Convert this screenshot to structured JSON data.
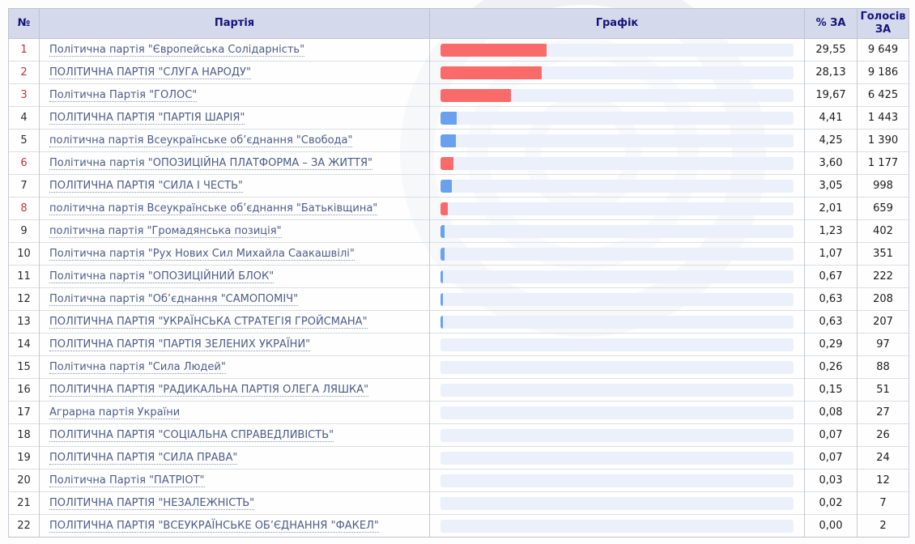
{
  "table": {
    "columns": {
      "num": "№",
      "party": "Партія",
      "chart": "Графік",
      "pct": "% ЗА",
      "votes": "Голосів ЗА"
    },
    "rows": [
      {
        "num": "1",
        "party": "Політична партія \"Європейська Солідарність\"",
        "pct": "29,55",
        "pct_value": 29.55,
        "votes": "9 649",
        "highlight": true
      },
      {
        "num": "2",
        "party": "ПОЛІТИЧНА ПАРТІЯ \"СЛУГА НАРОДУ\"",
        "pct": "28,13",
        "pct_value": 28.13,
        "votes": "9 186",
        "highlight": true
      },
      {
        "num": "3",
        "party": "Політична Партія \"ГОЛОС\"",
        "pct": "19,67",
        "pct_value": 19.67,
        "votes": "6 425",
        "highlight": true
      },
      {
        "num": "4",
        "party": "ПОЛІТИЧНА ПАРТІЯ \"ПАРТІЯ ШАРІЯ\"",
        "pct": "4,41",
        "pct_value": 4.41,
        "votes": "1 443",
        "highlight": false
      },
      {
        "num": "5",
        "party": "політична партія Всеукраїнське об’єднання \"Свобода\"",
        "pct": "4,25",
        "pct_value": 4.25,
        "votes": "1 390",
        "highlight": false
      },
      {
        "num": "6",
        "party": "Політична партія \"ОПОЗИЦІЙНА ПЛАТФОРМА – ЗА ЖИТТЯ\"",
        "pct": "3,60",
        "pct_value": 3.6,
        "votes": "1 177",
        "highlight": true
      },
      {
        "num": "7",
        "party": "ПОЛІТИЧНА ПАРТІЯ \"СИЛА І ЧЕСТЬ\"",
        "pct": "3,05",
        "pct_value": 3.05,
        "votes": "998",
        "highlight": false
      },
      {
        "num": "8",
        "party": "політична партія Всеукраїнське об’єднання \"Батьківщина\"",
        "pct": "2,01",
        "pct_value": 2.01,
        "votes": "659",
        "highlight": true
      },
      {
        "num": "9",
        "party": "політична партія \"Громадянська позиція\"",
        "pct": "1,23",
        "pct_value": 1.23,
        "votes": "402",
        "highlight": false
      },
      {
        "num": "10",
        "party": "Політична партія \"Рух Нових Сил Михайла Саакашвілі\"",
        "pct": "1,07",
        "pct_value": 1.07,
        "votes": "351",
        "highlight": false
      },
      {
        "num": "11",
        "party": "Політична партія \"ОПОЗИЦІЙНИЙ БЛОК\"",
        "pct": "0,67",
        "pct_value": 0.67,
        "votes": "222",
        "highlight": false
      },
      {
        "num": "12",
        "party": "Політична партія \"Об’єднання \"САМОПОМІЧ\"",
        "pct": "0,63",
        "pct_value": 0.63,
        "votes": "208",
        "highlight": false
      },
      {
        "num": "13",
        "party": "ПОЛІТИЧНА ПАРТІЯ \"УКРАЇНСЬКА СТРАТЕГІЯ ГРОЙСМАНА\"",
        "pct": "0,63",
        "pct_value": 0.63,
        "votes": "207",
        "highlight": false
      },
      {
        "num": "14",
        "party": "ПОЛІТИЧНА ПАРТІЯ \"ПАРТІЯ ЗЕЛЕНИХ УКРАЇНИ\"",
        "pct": "0,29",
        "pct_value": 0.29,
        "votes": "97",
        "highlight": false
      },
      {
        "num": "15",
        "party": "Політична партія \"Сила Людей\"",
        "pct": "0,26",
        "pct_value": 0.26,
        "votes": "88",
        "highlight": false
      },
      {
        "num": "16",
        "party": "ПОЛІТИЧНА ПАРТІЯ \"РАДИКАЛЬНА ПАРТІЯ ОЛЕГА ЛЯШКА\"",
        "pct": "0,15",
        "pct_value": 0.15,
        "votes": "51",
        "highlight": false
      },
      {
        "num": "17",
        "party": "Аграрна партія України",
        "pct": "0,08",
        "pct_value": 0.08,
        "votes": "27",
        "highlight": false
      },
      {
        "num": "18",
        "party": "ПОЛІТИЧНА ПАРТІЯ \"СОЦІАЛЬНА СПРАВЕДЛИВІСТЬ\"",
        "pct": "0,07",
        "pct_value": 0.07,
        "votes": "26",
        "highlight": false
      },
      {
        "num": "19",
        "party": "ПОЛІТИЧНА ПАРТІЯ \"СИЛА ПРАВА\"",
        "pct": "0,07",
        "pct_value": 0.07,
        "votes": "24",
        "highlight": false
      },
      {
        "num": "20",
        "party": "Політична Партія \"ПАТРІОТ\"",
        "pct": "0,03",
        "pct_value": 0.03,
        "votes": "12",
        "highlight": false
      },
      {
        "num": "21",
        "party": "ПОЛІТИЧНА ПАРТІЯ \"НЕЗАЛЕЖНІСТЬ\"",
        "pct": "0,02",
        "pct_value": 0.02,
        "votes": "7",
        "highlight": false
      },
      {
        "num": "22",
        "party": "ПОЛІТИЧНА ПАРТІЯ \"ВСЕУКРАЇНСЬКЕ ОБ’ЄДНАННЯ \"ФАКЕЛ\"",
        "pct": "0,00",
        "pct_value": 0.0,
        "votes": "2",
        "highlight": false
      }
    ]
  },
  "colors": {
    "bar_red": "#f96a6a",
    "bar_blue": "#6aa1ef",
    "number_red": "#c4303d",
    "header_bg": "#d5d9ec",
    "header_text": "#13137b",
    "link": "#4d5c87",
    "track": "#ebf0fa"
  }
}
